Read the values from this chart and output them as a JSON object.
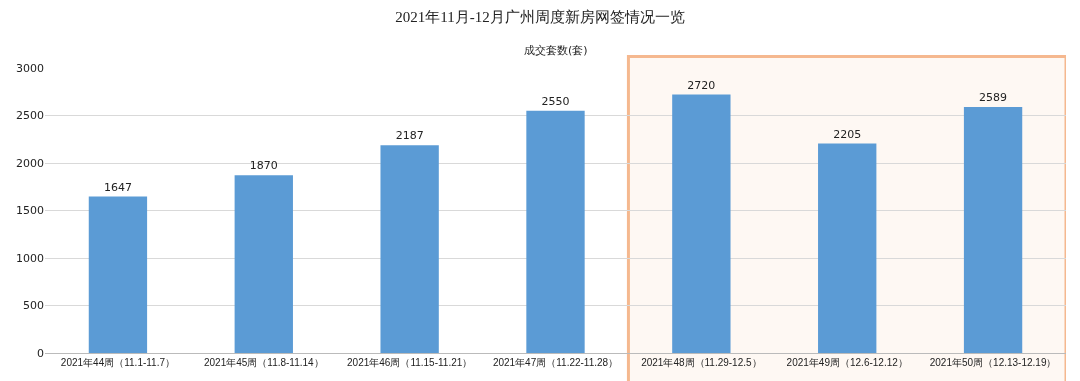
{
  "chart_data": {
    "type": "bar",
    "title": "2021年11月-12月广州周度新房网签情况一览",
    "subtitle": "成交套数(套)",
    "categories": [
      "2021年44周（11.1-11.7）",
      "2021年45周（11.8-11.14）",
      "2021年46周（11.15-11.21）",
      "2021年47周（11.22-11.28）",
      "2021年48周（11.29-12.5）",
      "2021年49周（12.6-12.12）",
      "2021年50周（12.13-12.19）"
    ],
    "values": [
      1647,
      1870,
      2187,
      2550,
      2720,
      2205,
      2589
    ],
    "color": "#5b9bd5",
    "data_labels": true,
    "ylim": [
      0,
      3000
    ],
    "yticks": [
      0,
      500,
      1000,
      1500,
      2000,
      2500,
      3000
    ],
    "grid": "y",
    "bands": [
      {
        "axis": "x",
        "from": "2021年48周（11.29-12.5）",
        "to": "2021年50周（12.13-12.19）",
        "color": "#f4b183"
      }
    ]
  }
}
